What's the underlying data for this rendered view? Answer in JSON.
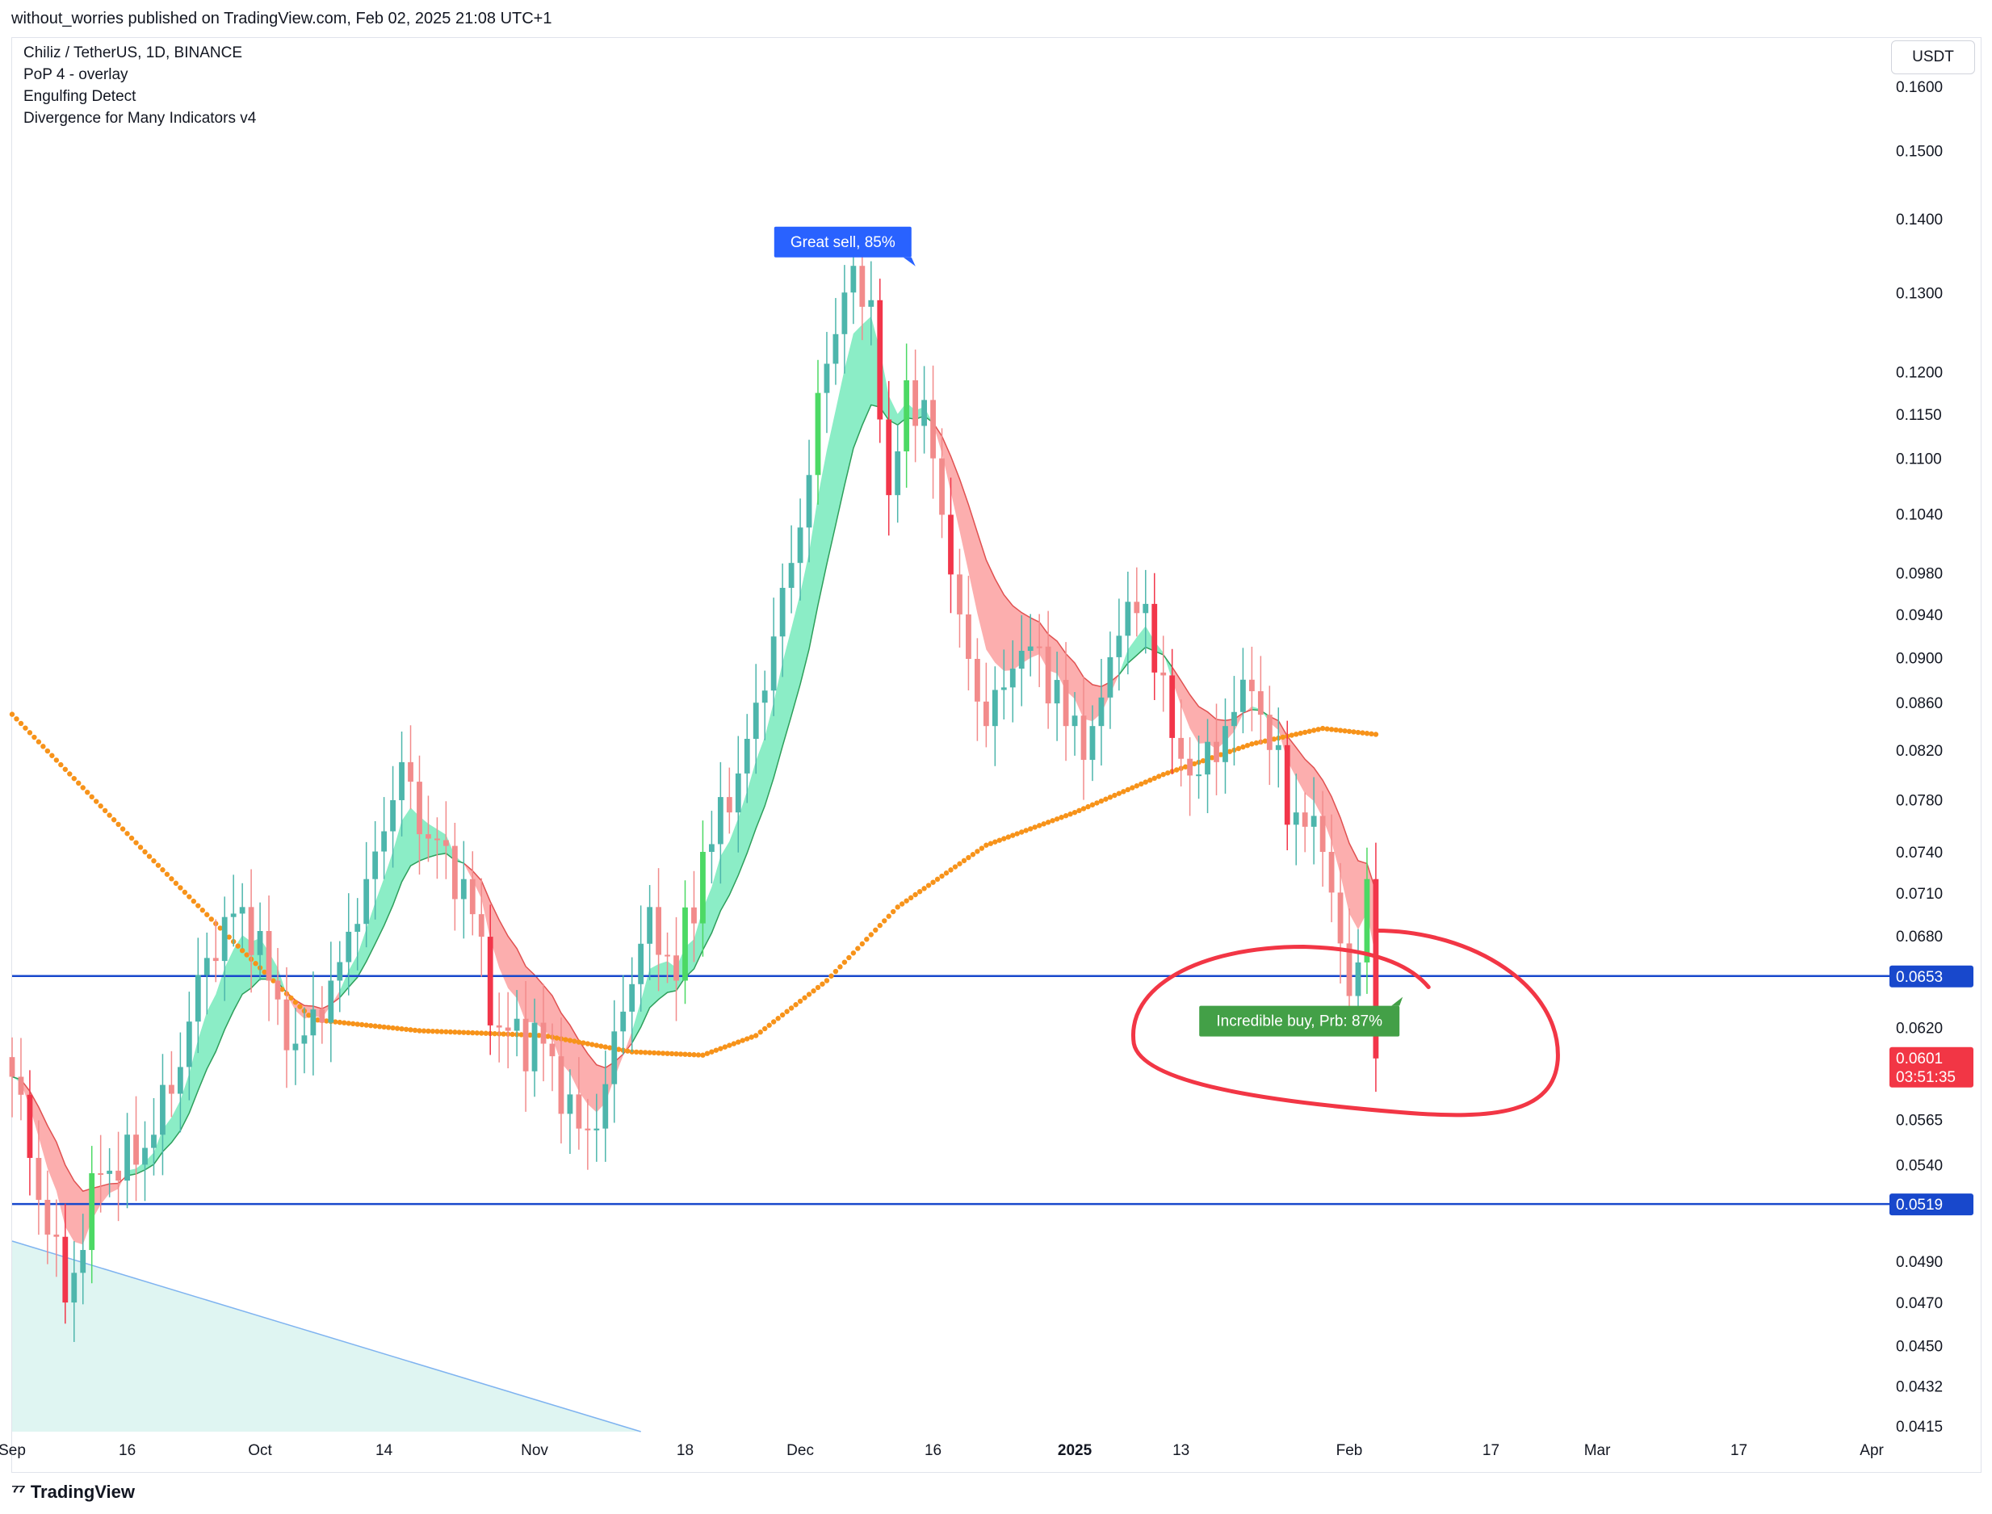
{
  "header": {
    "published": "without_worries published on TradingView.com, Feb 02, 2025 21:08 UTC+1"
  },
  "legend": {
    "symbol": "Chiliz / TetherUS, 1D, BINANCE",
    "line2": "PoP 4 - overlay",
    "line3": "Engulfing Detect",
    "line4": "Divergence for Many Indicators v4"
  },
  "currency": "USDT",
  "footer": {
    "logo_icon": "tradingview-logo-icon",
    "brand": "TradingView"
  },
  "colors": {
    "up": "#4db6ac",
    "down": "#f28b8b",
    "up_engulf": "#4cd964",
    "down_engulf": "#f2364a",
    "band_green": "#7eebc0",
    "band_red": "#fca5a5",
    "sma": "#f7931a",
    "hline": "#1848cc",
    "price_badge": "#f23645",
    "sell_label": "#2962ff",
    "buy_label": "#43a047"
  },
  "chart_data": {
    "type": "candlestick",
    "scale": "log",
    "ylim": [
      0.0412,
      0.168
    ],
    "y_ticks": [
      "0.1600",
      "0.1500",
      "0.1400",
      "0.1300",
      "0.1200",
      "0.1150",
      "0.1100",
      "0.1040",
      "0.0980",
      "0.0940",
      "0.0900",
      "0.0860",
      "0.0820",
      "0.0780",
      "0.0740",
      "0.0710",
      "0.0680",
      "0.0620",
      "0.0565",
      "0.0540",
      "0.0490",
      "0.0470",
      "0.0450",
      "0.0432",
      "0.0415"
    ],
    "x_ticks": [
      {
        "label": "Sep",
        "day": 0
      },
      {
        "label": "16",
        "day": 13
      },
      {
        "label": "Oct",
        "day": 28
      },
      {
        "label": "14",
        "day": 42
      },
      {
        "label": "Nov",
        "day": 59
      },
      {
        "label": "18",
        "day": 76
      },
      {
        "label": "Dec",
        "day": 89
      },
      {
        "label": "16",
        "day": 104
      },
      {
        "label": "2025",
        "day": 120,
        "bold": true
      },
      {
        "label": "13",
        "day": 132
      },
      {
        "label": "Feb",
        "day": 151
      },
      {
        "label": "17",
        "day": 167
      },
      {
        "label": "Mar",
        "day": 179
      },
      {
        "label": "17",
        "day": 195
      },
      {
        "label": "Apr",
        "day": 210
      }
    ],
    "x_range_days": [
      0,
      212
    ],
    "first_candle_day": 0,
    "last_candle_day": 154,
    "anchors": [
      {
        "day": 0,
        "price": 0.059
      },
      {
        "day": 6,
        "price": 0.047
      },
      {
        "day": 10,
        "price": 0.0535
      },
      {
        "day": 14,
        "price": 0.054
      },
      {
        "day": 18,
        "price": 0.058
      },
      {
        "day": 22,
        "price": 0.0665
      },
      {
        "day": 26,
        "price": 0.07
      },
      {
        "day": 29,
        "price": 0.065
      },
      {
        "day": 32,
        "price": 0.061
      },
      {
        "day": 36,
        "price": 0.065
      },
      {
        "day": 40,
        "price": 0.072
      },
      {
        "day": 44,
        "price": 0.081
      },
      {
        "day": 47,
        "price": 0.075
      },
      {
        "day": 51,
        "price": 0.072
      },
      {
        "day": 55,
        "price": 0.062
      },
      {
        "day": 60,
        "price": 0.061
      },
      {
        "day": 64,
        "price": 0.056
      },
      {
        "day": 66,
        "price": 0.056
      },
      {
        "day": 69,
        "price": 0.063
      },
      {
        "day": 72,
        "price": 0.07
      },
      {
        "day": 75,
        "price": 0.065
      },
      {
        "day": 78,
        "price": 0.074
      },
      {
        "day": 81,
        "price": 0.077
      },
      {
        "day": 84,
        "price": 0.086
      },
      {
        "day": 88,
        "price": 0.099
      },
      {
        "day": 92,
        "price": 0.121
      },
      {
        "day": 94,
        "price": 0.13
      },
      {
        "day": 97,
        "price": 0.129
      },
      {
        "day": 99,
        "price": 0.106
      },
      {
        "day": 101,
        "price": 0.119
      },
      {
        "day": 104,
        "price": 0.11
      },
      {
        "day": 107,
        "price": 0.094
      },
      {
        "day": 110,
        "price": 0.084
      },
      {
        "day": 113,
        "price": 0.089
      },
      {
        "day": 116,
        "price": 0.091
      },
      {
        "day": 119,
        "price": 0.084
      },
      {
        "day": 122,
        "price": 0.084
      },
      {
        "day": 125,
        "price": 0.092
      },
      {
        "day": 128,
        "price": 0.095
      },
      {
        "day": 131,
        "price": 0.083
      },
      {
        "day": 134,
        "price": 0.08
      },
      {
        "day": 137,
        "price": 0.084
      },
      {
        "day": 140,
        "price": 0.087
      },
      {
        "day": 142,
        "price": 0.082
      },
      {
        "day": 145,
        "price": 0.077
      },
      {
        "day": 148,
        "price": 0.074
      },
      {
        "day": 151,
        "price": 0.064
      },
      {
        "day": 153,
        "price": 0.072
      },
      {
        "day": 154,
        "price": 0.0601
      }
    ],
    "sma": [
      {
        "day": 0,
        "price": 0.085
      },
      {
        "day": 15,
        "price": 0.074
      },
      {
        "day": 26,
        "price": 0.067
      },
      {
        "day": 34,
        "price": 0.0625
      },
      {
        "day": 46,
        "price": 0.0618
      },
      {
        "day": 60,
        "price": 0.0615
      },
      {
        "day": 70,
        "price": 0.0605
      },
      {
        "day": 78,
        "price": 0.0603
      },
      {
        "day": 84,
        "price": 0.0615
      },
      {
        "day": 92,
        "price": 0.065
      },
      {
        "day": 100,
        "price": 0.07
      },
      {
        "day": 110,
        "price": 0.0745
      },
      {
        "day": 120,
        "price": 0.077
      },
      {
        "day": 130,
        "price": 0.08
      },
      {
        "day": 140,
        "price": 0.0825
      },
      {
        "day": 148,
        "price": 0.0838
      },
      {
        "day": 154,
        "price": 0.0833
      }
    ],
    "hlines": [
      {
        "price": 0.0653,
        "label": "0.0653"
      },
      {
        "price": 0.0519,
        "label": "0.0519"
      }
    ],
    "last_price": {
      "label": "0.0601",
      "countdown": "03:51:35"
    },
    "annotations": [
      {
        "text": "Great sell, 85%",
        "day": 97,
        "price": 0.137
      },
      {
        "text": "Incredible buy, Prb: 87%",
        "day": 145,
        "price": 0.0625
      }
    ],
    "trend_fill": {
      "from": {
        "day": 0,
        "price": 0.05
      },
      "to": {
        "day": 71,
        "price": 0.0412
      }
    }
  }
}
